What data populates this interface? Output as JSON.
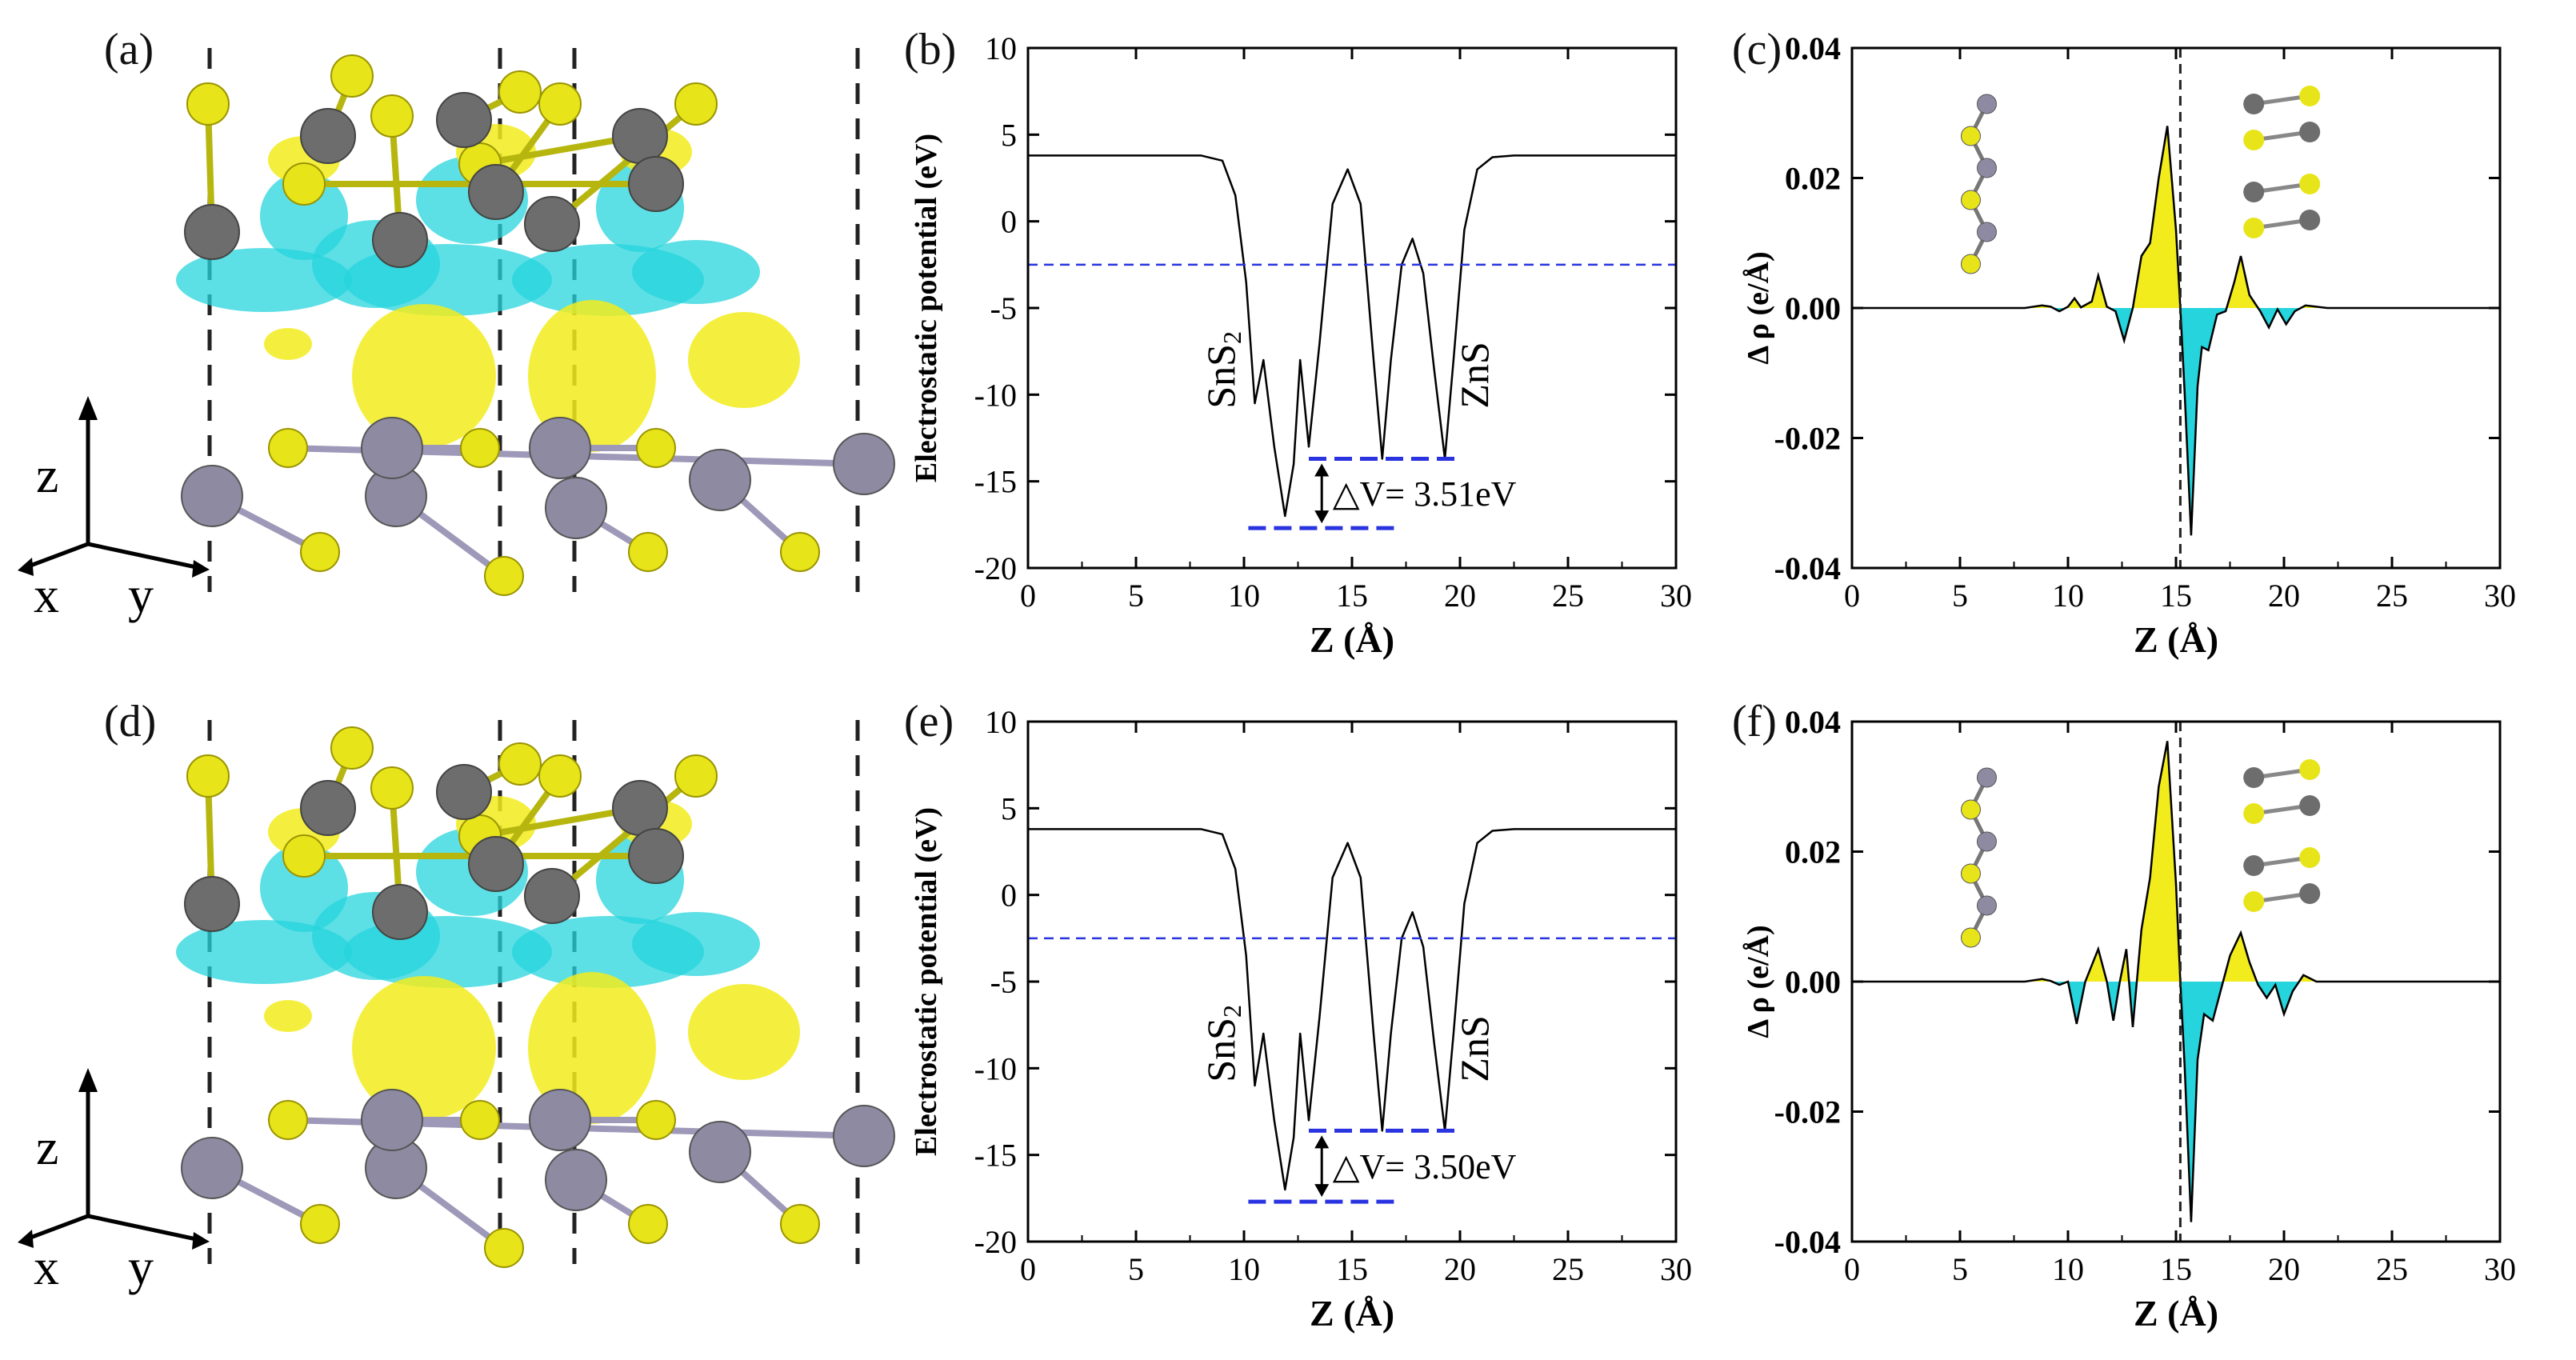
{
  "figure": {
    "panel_labels": [
      "(a)",
      "(b)",
      "(c)",
      "(d)",
      "(e)",
      "(f)"
    ],
    "axes_labels": {
      "z": "z",
      "x": "x",
      "y": "y"
    }
  },
  "colors": {
    "sulfur": "#e8e41a",
    "tin": "#8e8aa2",
    "zinc": "#6d6d6d",
    "accumulation": "#f2ec1d",
    "depletion": "#25d4dc",
    "vacuum_level": "#2a33e0",
    "curve": "#000000"
  },
  "chart_data": [
    {
      "id": "b",
      "type": "line",
      "title": "",
      "xlabel": "Z (Å)",
      "ylabel": "Electrostatic potential (eV)",
      "xlim": [
        0,
        30
      ],
      "ylim": [
        -20,
        10
      ],
      "xticks": [
        0,
        5,
        10,
        15,
        20,
        25,
        30
      ],
      "yticks": [
        -20,
        -15,
        -10,
        -5,
        0,
        5,
        10
      ],
      "series": [
        {
          "name": "potential",
          "x": [
            0,
            8,
            9,
            9.6,
            10.1,
            10.5,
            10.9,
            11.4,
            11.9,
            12.3,
            12.6,
            13.0,
            13.5,
            14.1,
            14.8,
            15.4,
            16.0,
            16.4,
            16.8,
            17.3,
            17.8,
            18.3,
            18.8,
            19.3,
            19.7,
            20.2,
            20.8,
            21.5,
            22.5,
            30
          ],
          "y": [
            3.8,
            3.8,
            3.5,
            1.5,
            -3.5,
            -10.5,
            -8.0,
            -13.0,
            -17.0,
            -14.0,
            -8.0,
            -13.0,
            -7.0,
            1.0,
            3.0,
            1.0,
            -8.0,
            -13.7,
            -8.0,
            -2.5,
            -1.0,
            -3.0,
            -8.5,
            -13.7,
            -8.0,
            -0.5,
            3.0,
            3.7,
            3.8,
            3.8
          ]
        }
      ],
      "vacuum_level": -2.5,
      "levels": [
        -13.7,
        -17.7
      ],
      "annotations": {
        "left_material": "SnS",
        "left_subscript": "2",
        "right_material": "ZnS",
        "delta_v": "△V= 3.51eV"
      }
    },
    {
      "id": "c",
      "type": "area",
      "title": "",
      "xlabel": "Z (Å)",
      "ylabel": "Δ ρ (e/Å)",
      "xlim": [
        0,
        30
      ],
      "ylim": [
        -0.04,
        0.04
      ],
      "xticks": [
        0,
        5,
        10,
        15,
        20,
        25,
        30
      ],
      "yticks": [
        "-0.04",
        "-0.02",
        "0.00",
        "0.02",
        "0.04"
      ],
      "interface_z": 15.2,
      "series": [
        {
          "name": "charge density difference",
          "x": [
            0,
            8,
            8.8,
            9.2,
            9.6,
            10.0,
            10.3,
            10.6,
            11.1,
            11.4,
            11.8,
            12.2,
            12.6,
            13.0,
            13.4,
            13.8,
            14.2,
            14.6,
            15.0,
            15.2,
            15.4,
            15.7,
            16.0,
            16.2,
            16.5,
            16.9,
            17.3,
            17.7,
            18.0,
            18.4,
            18.9,
            19.3,
            19.7,
            20.1,
            20.5,
            21.0,
            22.0,
            30
          ],
          "y": [
            0,
            0,
            0.0004,
            0.0002,
            -0.0005,
            0.0002,
            0.0015,
            0.0001,
            0.001,
            0.005,
            0.0002,
            -0.0005,
            -0.005,
            0.0,
            0.008,
            0.01,
            0.02,
            0.028,
            0.012,
            0.0,
            -0.013,
            -0.035,
            -0.012,
            -0.006,
            -0.0065,
            -0.001,
            -0.0005,
            0.004,
            0.008,
            0.002,
            -0.0005,
            -0.003,
            -0.0002,
            -0.0025,
            -0.0005,
            0.0004,
            0.0,
            0
          ]
        }
      ]
    },
    {
      "id": "e",
      "type": "line",
      "title": "",
      "xlabel": "Z (Å)",
      "ylabel": "Electrostatic potential (eV)",
      "xlim": [
        0,
        30
      ],
      "ylim": [
        -20,
        10
      ],
      "xticks": [
        0,
        5,
        10,
        15,
        20,
        25,
        30
      ],
      "yticks": [
        -20,
        -15,
        -10,
        -5,
        0,
        5,
        10
      ],
      "series": [
        {
          "name": "potential",
          "x": [
            0,
            8,
            9,
            9.6,
            10.1,
            10.5,
            10.9,
            11.4,
            11.9,
            12.3,
            12.6,
            13.0,
            13.5,
            14.1,
            14.8,
            15.4,
            16.0,
            16.4,
            16.8,
            17.3,
            17.8,
            18.3,
            18.8,
            19.3,
            19.7,
            20.2,
            20.8,
            21.5,
            22.5,
            30
          ],
          "y": [
            3.8,
            3.8,
            3.5,
            1.5,
            -3.5,
            -11.0,
            -8.0,
            -13.0,
            -17.0,
            -14.0,
            -8.0,
            -13.0,
            -7.0,
            1.0,
            3.0,
            1.0,
            -8.0,
            -13.6,
            -8.0,
            -2.5,
            -1.0,
            -3.0,
            -8.5,
            -13.6,
            -8.0,
            -0.5,
            3.0,
            3.7,
            3.8,
            3.8
          ]
        }
      ],
      "vacuum_level": -2.5,
      "levels": [
        -13.6,
        -17.7
      ],
      "annotations": {
        "left_material": "SnS",
        "left_subscript": "2",
        "right_material": "ZnS",
        "delta_v": "△V= 3.50eV"
      }
    },
    {
      "id": "f",
      "type": "area",
      "title": "",
      "xlabel": "Z (Å)",
      "ylabel": "Δ ρ (e/Å)",
      "xlim": [
        0,
        30
      ],
      "ylim": [
        -0.04,
        0.04
      ],
      "xticks": [
        0,
        5,
        10,
        15,
        20,
        25,
        30
      ],
      "yticks": [
        "-0.04",
        "-0.02",
        "0.00",
        "0.02",
        "0.04"
      ],
      "interface_z": 15.2,
      "series": [
        {
          "name": "charge density difference",
          "x": [
            0,
            8,
            8.8,
            9.2,
            9.6,
            10.0,
            10.4,
            10.8,
            11.1,
            11.4,
            11.8,
            12.1,
            12.4,
            12.7,
            13.0,
            13.4,
            13.8,
            14.2,
            14.6,
            15.0,
            15.2,
            15.4,
            15.7,
            16.0,
            16.3,
            16.7,
            17.1,
            17.5,
            18.0,
            18.4,
            18.8,
            19.2,
            19.6,
            20.0,
            20.4,
            20.9,
            21.5,
            30
          ],
          "y": [
            0,
            0,
            0.0004,
            0.0001,
            -0.0005,
            0.0,
            -0.0065,
            0.0,
            0.0025,
            0.005,
            0.0,
            -0.006,
            0.0,
            0.005,
            -0.007,
            0.008,
            0.016,
            0.03,
            0.037,
            0.015,
            0.0,
            -0.013,
            -0.037,
            -0.012,
            -0.005,
            -0.006,
            -0.001,
            0.004,
            0.0075,
            0.003,
            -0.0005,
            -0.0025,
            -0.0005,
            -0.005,
            -0.0015,
            0.001,
            0.0,
            0
          ]
        }
      ]
    }
  ]
}
